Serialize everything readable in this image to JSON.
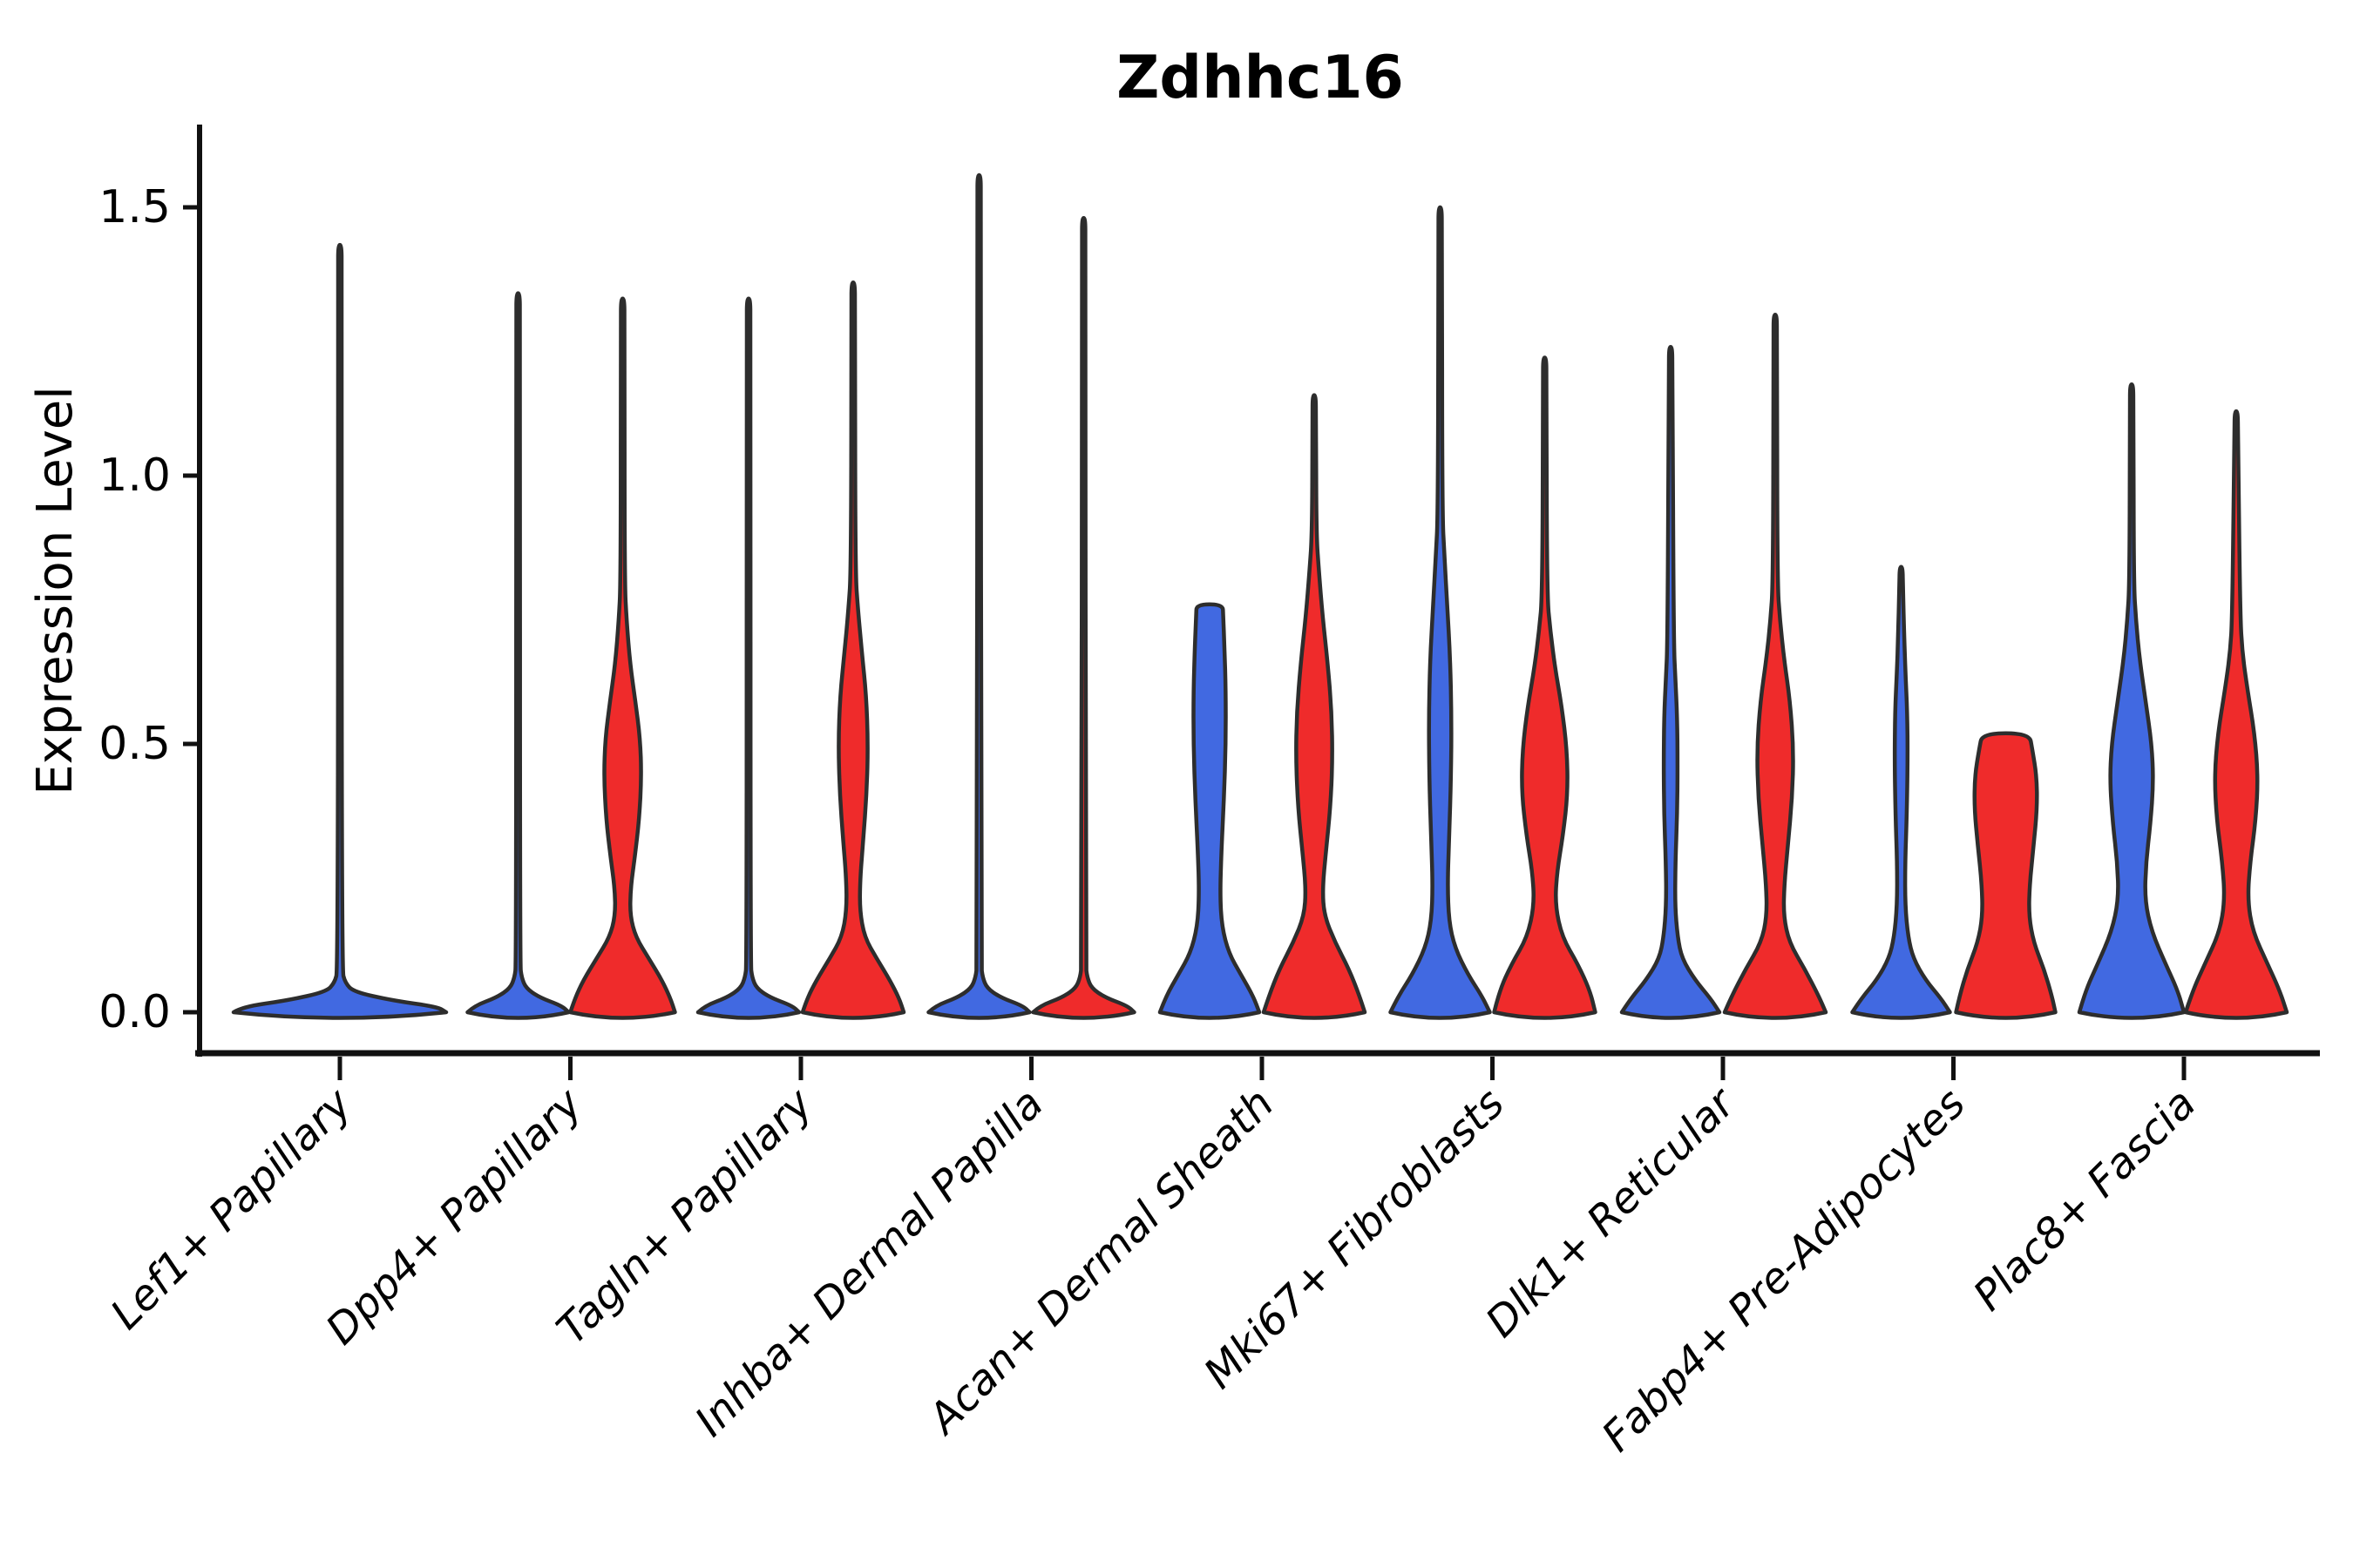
{
  "figure": {
    "title": "Zdhhc16",
    "ylabel": "Expression Level"
  },
  "chart_data": {
    "type": "violin",
    "title": "Zdhhc16",
    "xlabel": "",
    "ylabel": "Expression Level",
    "ylim": [
      -0.08,
      1.66
    ],
    "grid": false,
    "legend_position": "none",
    "yticks": [
      {
        "value": 0.0,
        "label": "0.0"
      },
      {
        "value": 0.5,
        "label": "0.5"
      },
      {
        "value": 1.0,
        "label": "1.0"
      },
      {
        "value": 1.5,
        "label": "1.5"
      }
    ],
    "categories": [
      "Lef1+ Papillary",
      "Dpp4+ Papillary",
      "Tagln+ Papillary",
      "Inhba+ Dermal Papilla",
      "Acan+ Dermal Sheath",
      "Mki67+ Fibroblasts",
      "Dlk1+ Reticular",
      "Fabp4+ Pre-Adipocytes",
      "Plac8+ Fascia"
    ],
    "colors": {
      "group_blue": "#4169E1",
      "group_red": "#EF2B2B",
      "edge": "#2D2D2D",
      "axis": "#111111",
      "text": "#000000"
    },
    "violins": [
      {
        "category_index": 0,
        "category": "Lef1+ Papillary",
        "group": "single_flat",
        "side": "center",
        "max_expression": 1.43,
        "profile": [
          [
            0,
            122
          ],
          [
            0.01,
            112
          ],
          [
            0.022,
            60
          ],
          [
            0.038,
            16
          ],
          [
            0.055,
            6
          ],
          [
            0.08,
            2.2
          ],
          [
            1.39,
            2.1
          ],
          [
            1.43,
            1.8
          ]
        ],
        "tip": "point"
      },
      {
        "category_index": 1,
        "category": "Dpp4+ Papillary",
        "group": "group_blue",
        "side": "left",
        "max_expression": 1.34,
        "profile": [
          [
            0,
            58
          ],
          [
            0.012,
            50
          ],
          [
            0.028,
            24
          ],
          [
            0.045,
            9
          ],
          [
            0.065,
            4
          ],
          [
            0.09,
            2.2
          ],
          [
            1.3,
            2.1
          ],
          [
            1.34,
            1.8
          ]
        ],
        "tip": "point"
      },
      {
        "category_index": 1,
        "category": "Dpp4+ Papillary",
        "group": "group_red",
        "side": "right",
        "max_expression": 1.33,
        "profile": [
          [
            0,
            60
          ],
          [
            0.025,
            55
          ],
          [
            0.06,
            45
          ],
          [
            0.1,
            30
          ],
          [
            0.14,
            15
          ],
          [
            0.18,
            8.5
          ],
          [
            0.23,
            9
          ],
          [
            0.29,
            14
          ],
          [
            0.36,
            19
          ],
          [
            0.44,
            21.5
          ],
          [
            0.51,
            20
          ],
          [
            0.58,
            14.5
          ],
          [
            0.65,
            8.5
          ],
          [
            0.73,
            4.5
          ],
          [
            0.8,
            2.2
          ],
          [
            1.29,
            2.1
          ],
          [
            1.33,
            1.8
          ]
        ],
        "tip": "point"
      },
      {
        "category_index": 2,
        "category": "Tagln+ Papillary",
        "group": "group_blue",
        "side": "left",
        "max_expression": 1.33,
        "profile": [
          [
            0,
            58
          ],
          [
            0.012,
            50
          ],
          [
            0.028,
            24
          ],
          [
            0.045,
            9
          ],
          [
            0.065,
            4
          ],
          [
            0.09,
            2.2
          ],
          [
            1.29,
            2.1
          ],
          [
            1.33,
            1.8
          ]
        ],
        "tip": "point"
      },
      {
        "category_index": 2,
        "category": "Tagln+ Papillary",
        "group": "group_red",
        "side": "right",
        "max_expression": 1.36,
        "profile": [
          [
            0,
            58
          ],
          [
            0.025,
            53
          ],
          [
            0.06,
            42
          ],
          [
            0.1,
            27
          ],
          [
            0.14,
            13
          ],
          [
            0.19,
            7.5
          ],
          [
            0.25,
            8
          ],
          [
            0.32,
            11.5
          ],
          [
            0.41,
            15.5
          ],
          [
            0.5,
            17
          ],
          [
            0.59,
            15
          ],
          [
            0.67,
            10
          ],
          [
            0.75,
            5.5
          ],
          [
            0.82,
            2.4
          ],
          [
            1.32,
            2.1
          ],
          [
            1.36,
            1.8
          ]
        ],
        "tip": "point"
      },
      {
        "category_index": 3,
        "category": "Inhba+ Dermal Papilla",
        "group": "group_blue",
        "side": "left",
        "max_expression": 1.56,
        "profile": [
          [
            0,
            58
          ],
          [
            0.012,
            50
          ],
          [
            0.028,
            24
          ],
          [
            0.045,
            9
          ],
          [
            0.065,
            4
          ],
          [
            0.09,
            2.2
          ],
          [
            1.52,
            2.1
          ],
          [
            1.56,
            1.8
          ]
        ],
        "tip": "point"
      },
      {
        "category_index": 3,
        "category": "Inhba+ Dermal Papilla",
        "group": "group_red",
        "side": "right",
        "max_expression": 1.48,
        "profile": [
          [
            0,
            58
          ],
          [
            0.012,
            50
          ],
          [
            0.028,
            24
          ],
          [
            0.045,
            9
          ],
          [
            0.065,
            4
          ],
          [
            0.09,
            2.2
          ],
          [
            1.44,
            2.1
          ],
          [
            1.48,
            1.8
          ]
        ],
        "tip": "point"
      },
      {
        "category_index": 4,
        "category": "Acan+ Dermal Sheath",
        "group": "group_blue",
        "side": "left",
        "max_expression": 0.76,
        "profile": [
          [
            0,
            57
          ],
          [
            0.03,
            50
          ],
          [
            0.07,
            36
          ],
          [
            0.11,
            22
          ],
          [
            0.16,
            14
          ],
          [
            0.22,
            12
          ],
          [
            0.3,
            13.5
          ],
          [
            0.4,
            16.5
          ],
          [
            0.5,
            18.5
          ],
          [
            0.6,
            18.5
          ],
          [
            0.68,
            17
          ],
          [
            0.74,
            15.5
          ],
          [
            0.76,
            15
          ]
        ],
        "tip": "flat"
      },
      {
        "category_index": 4,
        "category": "Acan+ Dermal Sheath",
        "group": "group_red",
        "side": "right",
        "max_expression": 1.15,
        "profile": [
          [
            0,
            58
          ],
          [
            0.03,
            52
          ],
          [
            0.08,
            40
          ],
          [
            0.13,
            24
          ],
          [
            0.18,
            11.5
          ],
          [
            0.23,
            9.5
          ],
          [
            0.3,
            13.5
          ],
          [
            0.38,
            18.5
          ],
          [
            0.47,
            21
          ],
          [
            0.56,
            20
          ],
          [
            0.65,
            15.5
          ],
          [
            0.74,
            9.5
          ],
          [
            0.82,
            5.5
          ],
          [
            0.89,
            2.4
          ],
          [
            1.11,
            2.1
          ],
          [
            1.15,
            1.8
          ]
        ],
        "tip": "point"
      },
      {
        "category_index": 5,
        "category": "Mki67+ Fibroblasts",
        "group": "group_blue",
        "side": "left",
        "max_expression": 1.5,
        "profile": [
          [
            0,
            57
          ],
          [
            0.03,
            48
          ],
          [
            0.07,
            32
          ],
          [
            0.12,
            17
          ],
          [
            0.17,
            10
          ],
          [
            0.24,
            8.5
          ],
          [
            0.33,
            10.5
          ],
          [
            0.44,
            12.5
          ],
          [
            0.55,
            13
          ],
          [
            0.66,
            11.5
          ],
          [
            0.76,
            8
          ],
          [
            0.85,
            5
          ],
          [
            0.93,
            2.4
          ],
          [
            1.46,
            2.1
          ],
          [
            1.5,
            1.8
          ]
        ],
        "tip": "point"
      },
      {
        "category_index": 5,
        "category": "Mki67+ Fibroblasts",
        "group": "group_red",
        "side": "right",
        "max_expression": 1.22,
        "profile": [
          [
            0,
            58
          ],
          [
            0.04,
            52
          ],
          [
            0.09,
            38
          ],
          [
            0.14,
            20
          ],
          [
            0.2,
            12
          ],
          [
            0.26,
            14
          ],
          [
            0.33,
            21
          ],
          [
            0.41,
            26.5
          ],
          [
            0.49,
            25.5
          ],
          [
            0.57,
            19.5
          ],
          [
            0.64,
            12
          ],
          [
            0.71,
            6.5
          ],
          [
            0.78,
            2.6
          ],
          [
            1.18,
            2.1
          ],
          [
            1.22,
            1.8
          ]
        ],
        "tip": "point"
      },
      {
        "category_index": 6,
        "category": "Dlk1+ Reticular",
        "group": "group_blue",
        "side": "left",
        "max_expression": 1.24,
        "profile": [
          [
            0,
            56
          ],
          [
            0.025,
            46
          ],
          [
            0.06,
            28
          ],
          [
            0.1,
            13
          ],
          [
            0.14,
            8
          ],
          [
            0.2,
            5
          ],
          [
            0.28,
            5.5
          ],
          [
            0.37,
            7.5
          ],
          [
            0.46,
            8
          ],
          [
            0.55,
            7.5
          ],
          [
            0.62,
            5.5
          ],
          [
            0.69,
            3.5
          ],
          [
            1.2,
            2.1
          ],
          [
            1.24,
            1.8
          ]
        ],
        "tip": "point"
      },
      {
        "category_index": 6,
        "category": "Dlk1+ Reticular",
        "group": "group_red",
        "side": "right",
        "max_expression": 1.3,
        "profile": [
          [
            0,
            58
          ],
          [
            0.03,
            50
          ],
          [
            0.08,
            34
          ],
          [
            0.13,
            16
          ],
          [
            0.18,
            9.5
          ],
          [
            0.24,
            10.5
          ],
          [
            0.31,
            14.5
          ],
          [
            0.4,
            19.5
          ],
          [
            0.49,
            21
          ],
          [
            0.58,
            17
          ],
          [
            0.66,
            10
          ],
          [
            0.73,
            5.5
          ],
          [
            0.8,
            2.4
          ],
          [
            1.26,
            2.1
          ],
          [
            1.3,
            1.8
          ]
        ],
        "tip": "point"
      },
      {
        "category_index": 7,
        "category": "Fabp4+ Pre-Adipocytes",
        "group": "group_blue",
        "side": "left",
        "max_expression": 0.83,
        "profile": [
          [
            0,
            56
          ],
          [
            0.025,
            46
          ],
          [
            0.06,
            28
          ],
          [
            0.1,
            14
          ],
          [
            0.14,
            8
          ],
          [
            0.2,
            4.6
          ],
          [
            0.28,
            4.6
          ],
          [
            0.37,
            6.5
          ],
          [
            0.47,
            7.5
          ],
          [
            0.56,
            7
          ],
          [
            0.63,
            5
          ],
          [
            0.7,
            3.5
          ],
          [
            0.79,
            2.1
          ],
          [
            0.83,
            1.8
          ]
        ],
        "tip": "point"
      },
      {
        "category_index": 7,
        "category": "Fabp4+ Pre-Adipocytes",
        "group": "group_red",
        "side": "right",
        "max_expression": 0.52,
        "profile": [
          [
            0,
            57
          ],
          [
            0.03,
            53
          ],
          [
            0.08,
            44
          ],
          [
            0.13,
            32
          ],
          [
            0.18,
            26.5
          ],
          [
            0.24,
            27.5
          ],
          [
            0.31,
            32
          ],
          [
            0.38,
            36
          ],
          [
            0.44,
            35.5
          ],
          [
            0.49,
            30.5
          ],
          [
            0.52,
            27
          ]
        ],
        "tip": "flat"
      },
      {
        "category_index": 8,
        "category": "Plac8+ Fascia",
        "group": "group_blue",
        "side": "left",
        "max_expression": 1.17,
        "profile": [
          [
            0,
            60
          ],
          [
            0.04,
            53
          ],
          [
            0.09,
            39
          ],
          [
            0.15,
            23
          ],
          [
            0.21,
            15
          ],
          [
            0.28,
            16.5
          ],
          [
            0.35,
            21.5
          ],
          [
            0.43,
            25
          ],
          [
            0.5,
            23
          ],
          [
            0.58,
            16
          ],
          [
            0.66,
            9
          ],
          [
            0.73,
            5
          ],
          [
            0.8,
            2.4
          ],
          [
            1.13,
            2.1
          ],
          [
            1.17,
            1.8
          ]
        ],
        "tip": "point"
      },
      {
        "category_index": 8,
        "category": "Plac8+ Fascia",
        "group": "group_red",
        "side": "right",
        "max_expression": 1.12,
        "profile": [
          [
            0,
            58
          ],
          [
            0.04,
            50
          ],
          [
            0.09,
            36
          ],
          [
            0.15,
            19
          ],
          [
            0.21,
            13
          ],
          [
            0.28,
            16
          ],
          [
            0.36,
            22.5
          ],
          [
            0.44,
            25
          ],
          [
            0.52,
            21
          ],
          [
            0.6,
            13
          ],
          [
            0.67,
            7
          ],
          [
            0.74,
            4.5
          ],
          [
            1.08,
            2.1
          ],
          [
            1.12,
            1.8
          ]
        ],
        "tip": "point"
      }
    ]
  }
}
